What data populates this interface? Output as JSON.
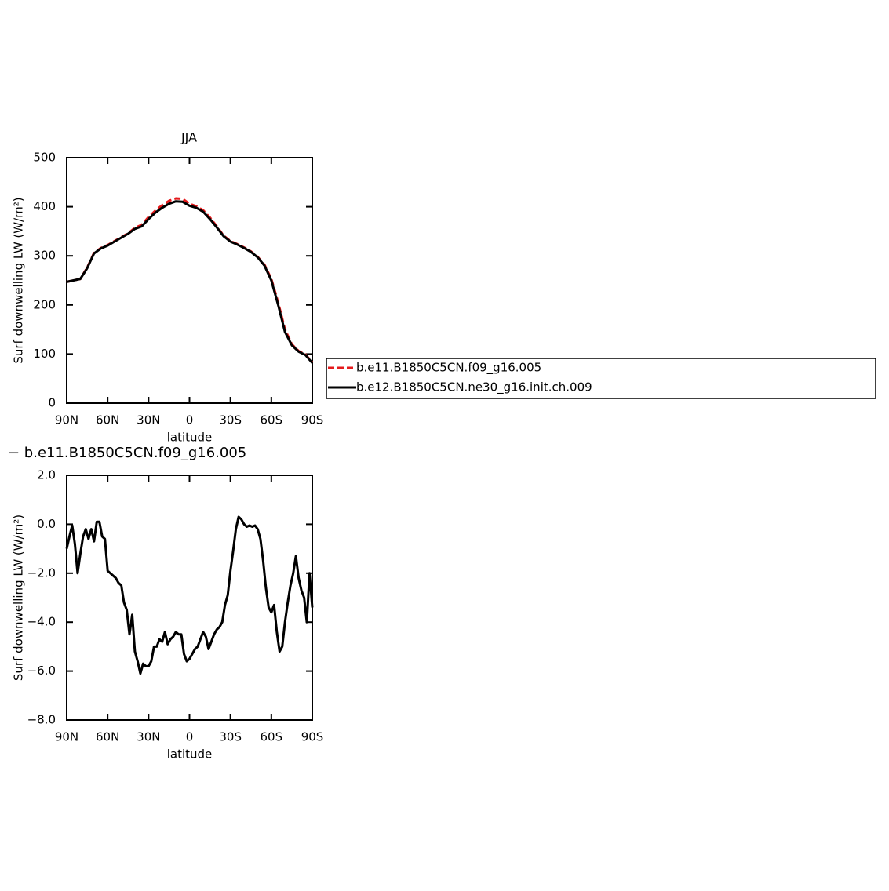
{
  "chart_data": [
    {
      "type": "line",
      "title": "JJA",
      "xlabel": "latitude",
      "ylabel": "Surf downwelling LW (W/m²)",
      "x": [
        90,
        85,
        80,
        75,
        70,
        65,
        60,
        55,
        50,
        45,
        40,
        35,
        30,
        25,
        20,
        15,
        10,
        5,
        0,
        -5,
        -10,
        -15,
        -20,
        -25,
        -30,
        -35,
        -40,
        -45,
        -50,
        -55,
        -60,
        -65,
        -70,
        -75,
        -80,
        -85,
        -90
      ],
      "series": [
        {
          "name": "b.e11.B1850C5CN.f09_g16.005",
          "color": "#e41a1c",
          "linestyle": "dashed",
          "values": [
            247,
            250,
            253,
            276,
            306,
            316,
            322,
            330,
            338,
            346,
            357,
            363,
            379,
            392,
            403,
            412,
            417,
            416,
            406,
            401,
            393,
            378,
            360,
            341,
            330,
            324,
            317,
            309,
            298,
            282,
            253,
            205,
            150,
            120,
            106,
            99,
            83
          ]
        },
        {
          "name": "b.e12.B1850C5CN.ne30_g16.init.ch.009",
          "color": "#000000",
          "linestyle": "solid",
          "values": [
            247,
            250,
            253,
            275,
            305,
            315,
            321,
            329,
            337,
            345,
            355,
            360,
            375,
            388,
            398,
            406,
            411,
            410,
            402,
            398,
            390,
            375,
            358,
            340,
            329,
            323,
            316,
            308,
            297,
            280,
            250,
            200,
            145,
            118,
            105,
            98,
            82
          ]
        }
      ],
      "xlim": [
        90,
        -90
      ],
      "xticks": [
        {
          "value": 90,
          "label": "90N"
        },
        {
          "value": 60,
          "label": "60N"
        },
        {
          "value": 30,
          "label": "30N"
        },
        0,
        {
          "value": -30,
          "label": "30S"
        },
        {
          "value": -60,
          "label": "60S"
        },
        {
          "value": -90,
          "label": "90S"
        }
      ],
      "ylim": [
        0,
        500
      ],
      "yticks": [
        0,
        100,
        200,
        300,
        400,
        500
      ],
      "legend": "right"
    },
    {
      "type": "line",
      "title": "− b.e11.B1850C5CN.f09_g16.005",
      "xlabel": "latitude",
      "ylabel": "Surf downwelling LW (W/m²)",
      "x": [
        90,
        88,
        86,
        84,
        82,
        80,
        78,
        76,
        74,
        72,
        70,
        68,
        66,
        64,
        62,
        60,
        58,
        56,
        54,
        52,
        50,
        48,
        46,
        44,
        42,
        40,
        38,
        36,
        34,
        32,
        30,
        28,
        26,
        24,
        22,
        20,
        18,
        16,
        14,
        12,
        10,
        8,
        6,
        4,
        2,
        0,
        -2,
        -4,
        -6,
        -8,
        -10,
        -12,
        -14,
        -16,
        -18,
        -20,
        -22,
        -24,
        -26,
        -28,
        -30,
        -32,
        -34,
        -36,
        -38,
        -40,
        -42,
        -44,
        -46,
        -48,
        -50,
        -52,
        -54,
        -56,
        -58,
        -60,
        -62,
        -64,
        -66,
        -68,
        -70,
        -72,
        -74,
        -76,
        -78,
        -80,
        -82,
        -84,
        -86,
        -88,
        -90
      ],
      "values": [
        -1.0,
        -0.5,
        -0.05,
        -0.8,
        -2.0,
        -1.2,
        -0.5,
        -0.2,
        -0.6,
        -0.2,
        -0.7,
        0.1,
        0.1,
        -0.5,
        -0.6,
        -1.9,
        -2.0,
        -2.1,
        -2.2,
        -2.4,
        -2.5,
        -3.2,
        -3.5,
        -4.5,
        -3.7,
        -5.2,
        -5.6,
        -6.1,
        -5.7,
        -5.8,
        -5.8,
        -5.6,
        -5.0,
        -5.0,
        -4.7,
        -4.8,
        -4.4,
        -4.9,
        -4.7,
        -4.6,
        -4.4,
        -4.5,
        -4.5,
        -5.3,
        -5.6,
        -5.5,
        -5.3,
        -5.1,
        -5.0,
        -4.7,
        -4.4,
        -4.6,
        -5.1,
        -4.8,
        -4.5,
        -4.3,
        -4.2,
        -4.0,
        -3.3,
        -2.9,
        -1.9,
        -1.1,
        -0.2,
        0.3,
        0.2,
        0.0,
        -0.1,
        -0.05,
        -0.1,
        -0.05,
        -0.2,
        -0.6,
        -1.5,
        -2.6,
        -3.4,
        -3.6,
        -3.3,
        -4.4,
        -5.2,
        -5.0,
        -4.0,
        -3.2,
        -2.5,
        -2.0,
        -1.3,
        -2.2,
        -2.7,
        -3.0,
        -4.0,
        -2.0,
        -3.4
      ],
      "color": "#000000",
      "xlim": [
        90,
        -90
      ],
      "xticks": [
        {
          "value": 90,
          "label": "90N"
        },
        {
          "value": 60,
          "label": "60N"
        },
        {
          "value": 30,
          "label": "30N"
        },
        0,
        {
          "value": -30,
          "label": "30S"
        },
        {
          "value": -60,
          "label": "60S"
        },
        {
          "value": -90,
          "label": "90S"
        }
      ],
      "ylim": [
        -8,
        2
      ],
      "yticks": [
        {
          "value": -8,
          "label": "−8.0"
        },
        {
          "value": -6,
          "label": "−6.0"
        },
        {
          "value": -4,
          "label": "−4.0"
        },
        {
          "value": -2,
          "label": "−2.0"
        },
        {
          "value": 0,
          "label": "0.0"
        },
        {
          "value": 2,
          "label": "2.0"
        }
      ]
    }
  ]
}
